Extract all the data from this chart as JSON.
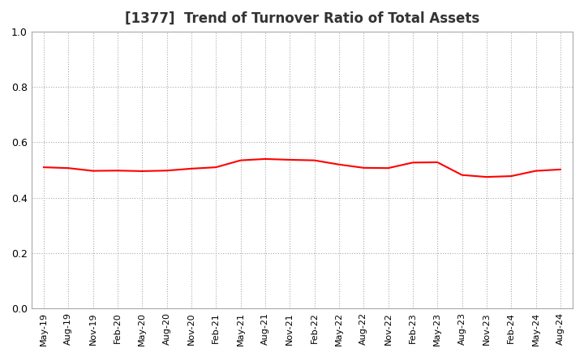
{
  "title": "[1377]  Trend of Turnover Ratio of Total Assets",
  "line_color": "#FF0000",
  "line_width": 1.5,
  "background_color": "#FFFFFF",
  "grid_color": "#AAAAAA",
  "ylim": [
    0.0,
    1.0
  ],
  "yticks": [
    0.0,
    0.2,
    0.4,
    0.6,
    0.8,
    1.0
  ],
  "x_labels": [
    "May-19",
    "Aug-19",
    "Nov-19",
    "Feb-20",
    "May-20",
    "Aug-20",
    "Nov-20",
    "Feb-21",
    "May-21",
    "Aug-21",
    "Nov-21",
    "Feb-22",
    "May-22",
    "Aug-22",
    "Nov-22",
    "Feb-23",
    "May-23",
    "Aug-23",
    "Nov-23",
    "Feb-24",
    "May-24",
    "Aug-24"
  ],
  "values": [
    0.51,
    0.507,
    0.497,
    0.498,
    0.496,
    0.498,
    0.505,
    0.51,
    0.535,
    0.54,
    0.537,
    0.535,
    0.52,
    0.508,
    0.507,
    0.527,
    0.528,
    0.482,
    0.475,
    0.478,
    0.497,
    0.502
  ],
  "title_fontsize": 12,
  "title_color": "#333333",
  "tick_fontsize": 8,
  "ytick_fontsize": 9
}
